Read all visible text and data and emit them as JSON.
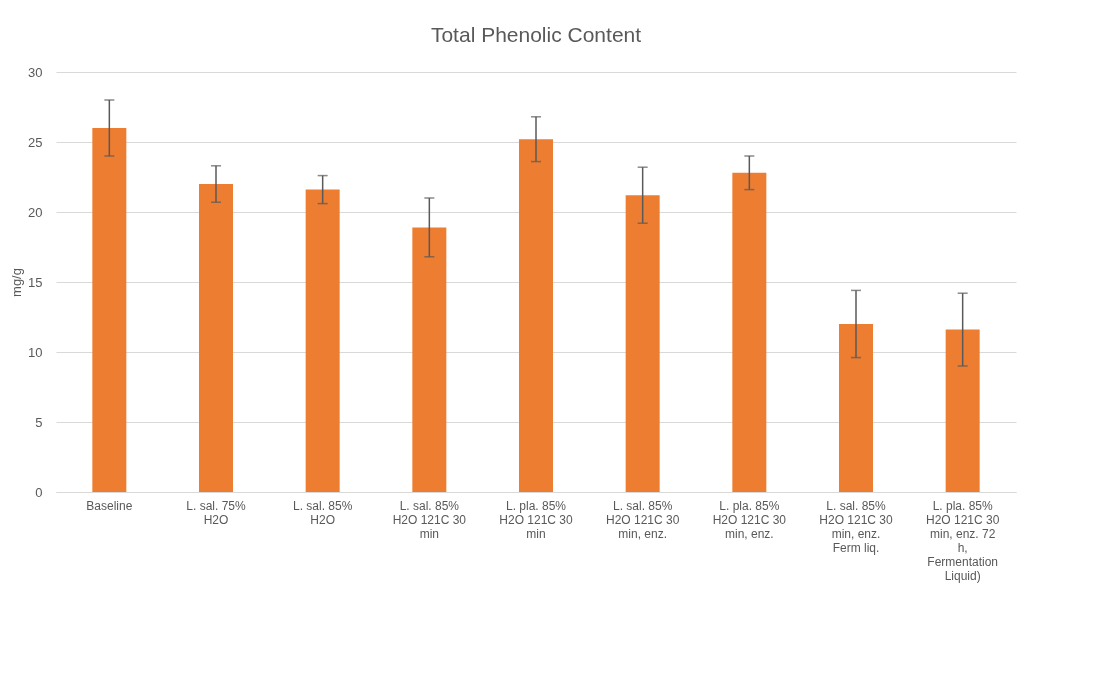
{
  "chart_data": {
    "type": "bar",
    "title": "Total Phenolic Content",
    "ylabel": "mg/g",
    "categories": [
      "Baseline",
      "L. sal. 75% H2O",
      "L. sal. 85% H2O",
      "L. sal. 85% H2O 121C 30 min",
      "L. pla. 85% H2O 121C 30 min",
      "L. sal. 85% H2O 121C 30 min, enz.",
      "L. pla. 85% H2O 121C 30 min, enz.",
      "L. sal. 85% H2O 121C 30 min, enz. Ferm liq.",
      "L. pla. 85% H2O 121C 30 min, enz. 72 h, Fermentation Liquid)"
    ],
    "values": [
      26.0,
      22.0,
      21.6,
      18.9,
      25.2,
      21.2,
      22.8,
      12.0,
      11.6
    ],
    "errors": [
      2.0,
      1.3,
      1.0,
      2.1,
      1.6,
      2.0,
      1.2,
      2.4,
      2.6
    ],
    "color": "#ed7d31",
    "ylim": [
      0,
      30
    ],
    "yticks": [
      0,
      5,
      10,
      15,
      20,
      25,
      30
    ],
    "grid": "y"
  }
}
